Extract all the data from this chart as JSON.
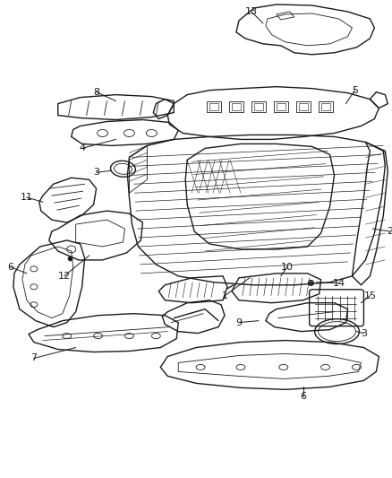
{
  "background_color": "#ffffff",
  "line_color": "#1a1a1a",
  "label_color": "#1a1a1a",
  "figure_width": 4.38,
  "figure_height": 5.33,
  "dpi": 100
}
